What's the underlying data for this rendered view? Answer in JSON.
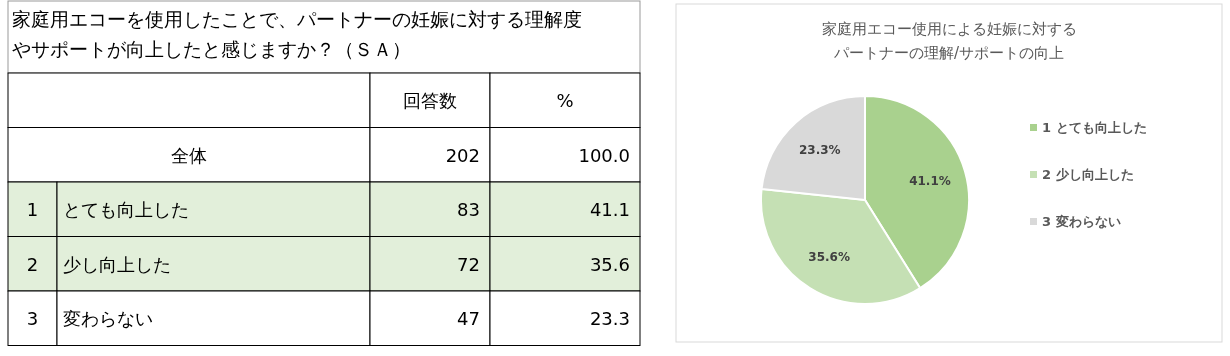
{
  "chart_data": [
    {
      "type": "other",
      "title": "家庭用エコーを使用したことで、パートナーの妊娠に対する理解度やサポートが向上したと感じますか？（ＳＡ）",
      "categories": [
        "回答数",
        "%"
      ],
      "y_categories": [
        "全体",
        "とても向上した",
        "少し向上した",
        "変わらない"
      ],
      "y2_categories": [
        null,
        "1",
        "2",
        "3"
      ],
      "cell_labels": [
        [
          "202",
          "100.0"
        ],
        [
          "83",
          "41.1"
        ],
        [
          "72",
          "35.6"
        ],
        [
          "47",
          "23.3"
        ]
      ]
    },
    {
      "type": "pie",
      "title": "家庭用エコー使用による妊娠に対するパートナーの理解/サポートの向上",
      "categories": [
        "1 とても向上した",
        "2 少し向上した",
        "3 変わらない"
      ],
      "values": [
        41.1,
        35.6,
        23.3
      ],
      "colors": [
        "#a9d18e",
        "#c5e0b4",
        "#d9d9d9"
      ],
      "value_labels": [
        "41.1%",
        "35.6%",
        "23.3%"
      ],
      "legend": "right"
    }
  ]
}
